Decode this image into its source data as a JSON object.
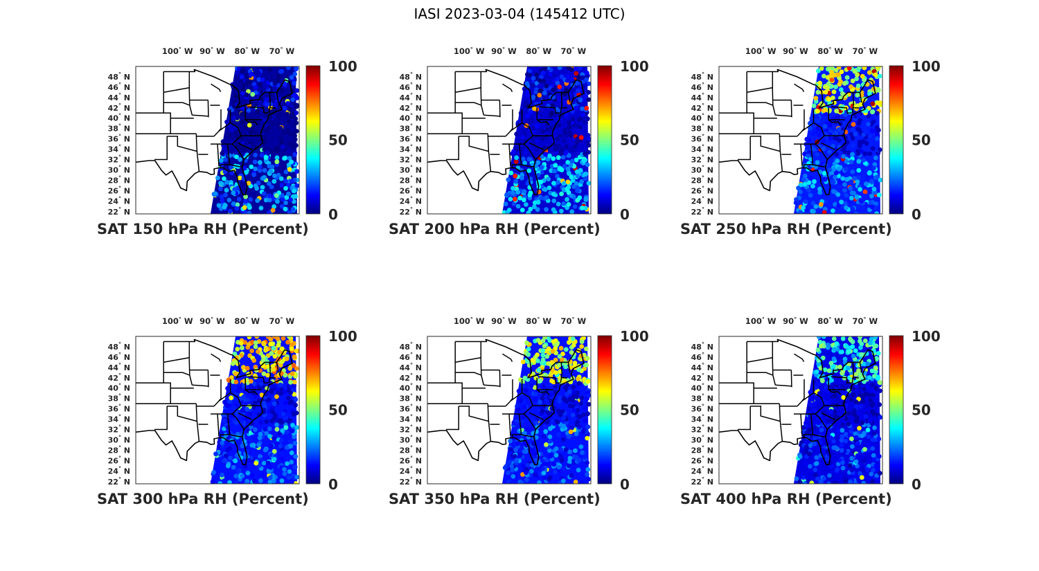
{
  "title": "IASI 2023-03-04 (145412 UTC)",
  "map": {
    "lon_ticks": [
      "100",
      "90",
      "80",
      "70"
    ],
    "lon_hemisphere": "W",
    "lat_ticks": [
      "48",
      "46",
      "44",
      "42",
      "40",
      "38",
      "36",
      "34",
      "32",
      "30",
      "28",
      "26",
      "24",
      "22"
    ],
    "lat_hemisphere": "N",
    "degree_symbol": "°"
  },
  "colorbar": {
    "min_label": "0",
    "mid_label": "50",
    "max_label": "100",
    "colormap": "jet",
    "stops": [
      "#00007f",
      "#0000ff",
      "#007fff",
      "#00ffff",
      "#7fff7f",
      "#ffff00",
      "#ff7f00",
      "#ff0000",
      "#7f0000"
    ]
  },
  "land_color": "#ffffff",
  "border_color": "#000000",
  "panels": [
    {
      "caption": "SAT 150 hPa RH (Percent)",
      "level": 150,
      "base_value": 3,
      "north_value": 5,
      "south_value": 25,
      "spot_value": 60
    },
    {
      "caption": "SAT 200 hPa RH (Percent)",
      "level": 200,
      "base_value": 8,
      "north_value": 8,
      "south_value": 30,
      "spot_value": 80
    },
    {
      "caption": "SAT 250 hPa RH (Percent)",
      "level": 250,
      "base_value": 15,
      "north_value": 55,
      "south_value": 25,
      "spot_value": 85
    },
    {
      "caption": "SAT 300 hPa RH (Percent)",
      "level": 300,
      "base_value": 14,
      "north_value": 65,
      "south_value": 20,
      "spot_value": 55
    },
    {
      "caption": "SAT 350 hPa RH (Percent)",
      "level": 350,
      "base_value": 14,
      "north_value": 55,
      "south_value": 18,
      "spot_value": 60
    },
    {
      "caption": "SAT 400 hPa RH (Percent)",
      "level": 400,
      "base_value": 10,
      "north_value": 40,
      "south_value": 15,
      "spot_value": 50
    }
  ]
}
